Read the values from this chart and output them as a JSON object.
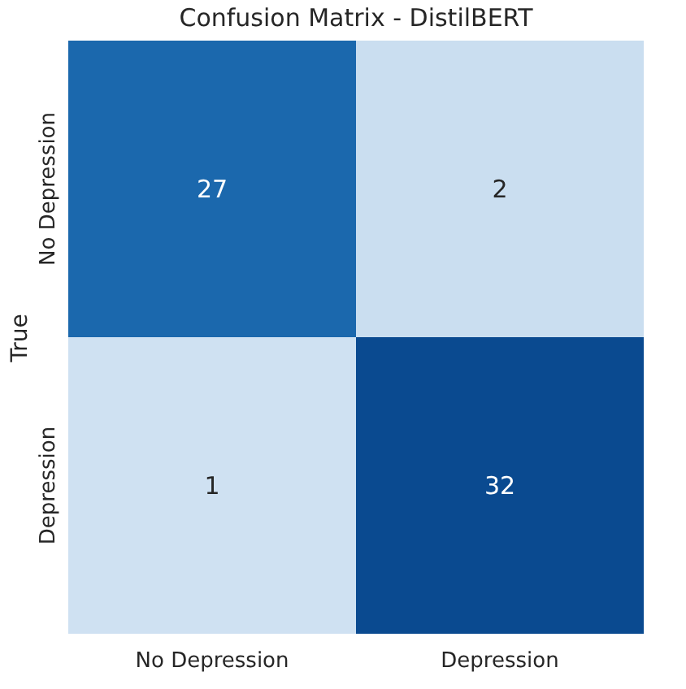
{
  "chart_data": {
    "type": "heatmap",
    "title": "Confusion Matrix - DistilBERT",
    "ylabel": "True",
    "categories": [
      "No Depression",
      "Depression"
    ],
    "y_categories": [
      "No Depression",
      "Depression"
    ],
    "cells": [
      [
        27,
        2
      ],
      [
        1,
        32
      ]
    ],
    "data_labels": true
  }
}
